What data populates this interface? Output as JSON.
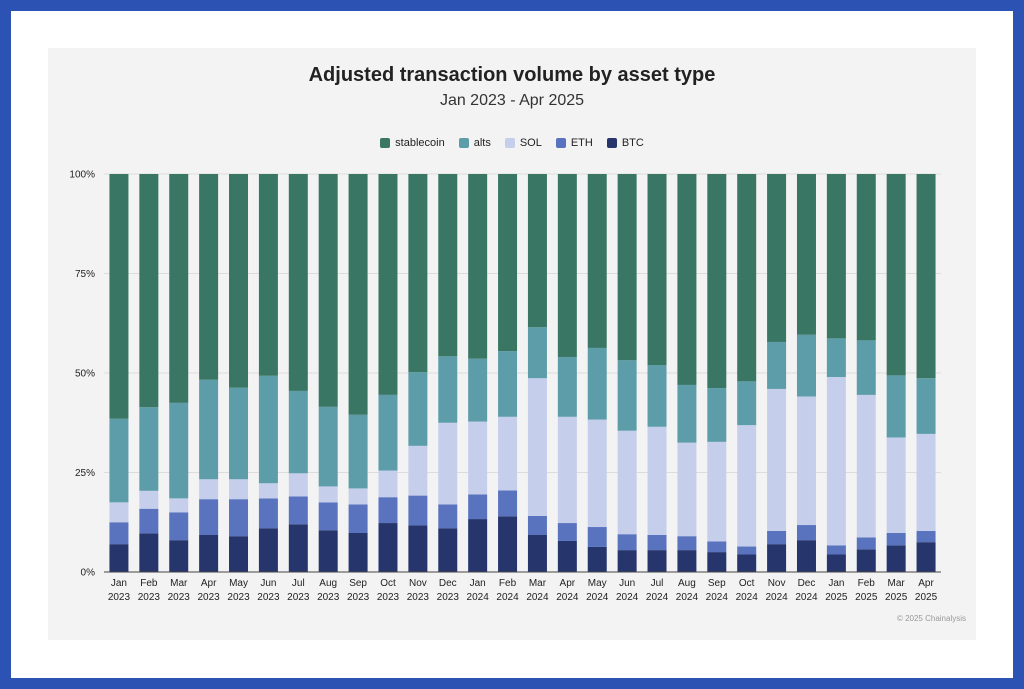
{
  "chart_data": {
    "type": "bar",
    "stacked": true,
    "normalized": true,
    "title": "Adjusted transaction volume by asset type",
    "subtitle": "Jan 2023 - Apr 2025",
    "y_ticks": [
      "0%",
      "25%",
      "50%",
      "75%",
      "100%"
    ],
    "ylim": [
      0,
      100
    ],
    "legend_placement": "top-center",
    "categories": [
      [
        "Jan",
        "2023"
      ],
      [
        "Feb",
        "2023"
      ],
      [
        "Mar",
        "2023"
      ],
      [
        "Apr",
        "2023"
      ],
      [
        "May",
        "2023"
      ],
      [
        "Jun",
        "2023"
      ],
      [
        "Jul",
        "2023"
      ],
      [
        "Aug",
        "2023"
      ],
      [
        "Sep",
        "2023"
      ],
      [
        "Oct",
        "2023"
      ],
      [
        "Nov",
        "2023"
      ],
      [
        "Dec",
        "2023"
      ],
      [
        "Jan",
        "2024"
      ],
      [
        "Feb",
        "2024"
      ],
      [
        "Mar",
        "2024"
      ],
      [
        "Apr",
        "2024"
      ],
      [
        "May",
        "2024"
      ],
      [
        "Jun",
        "2024"
      ],
      [
        "Jul",
        "2024"
      ],
      [
        "Aug",
        "2024"
      ],
      [
        "Sep",
        "2024"
      ],
      [
        "Oct",
        "2024"
      ],
      [
        "Nov",
        "2024"
      ],
      [
        "Dec",
        "2024"
      ],
      [
        "Jan",
        "2025"
      ],
      [
        "Feb",
        "2025"
      ],
      [
        "Mar",
        "2025"
      ],
      [
        "Apr",
        "2025"
      ]
    ],
    "series": [
      {
        "name": "BTC",
        "color": "#26366d",
        "values": [
          7.0,
          9.7,
          8.0,
          9.3,
          9.0,
          11.0,
          12.0,
          10.5,
          9.8,
          12.3,
          11.7,
          11.0,
          13.3,
          14.0,
          9.3,
          7.8,
          6.3,
          5.5,
          5.5,
          5.5,
          5.0,
          4.4,
          7.0,
          8.0,
          4.4,
          5.7,
          6.7,
          7.5
        ]
      },
      {
        "name": "ETH",
        "color": "#5a73bf",
        "values": [
          5.5,
          6.2,
          7.0,
          9.0,
          9.3,
          7.5,
          7.0,
          7.0,
          7.2,
          6.5,
          7.5,
          6.0,
          6.2,
          6.5,
          4.8,
          4.5,
          5.0,
          4.0,
          3.8,
          3.5,
          2.7,
          2.0,
          3.3,
          3.8,
          2.3,
          3.0,
          3.1,
          2.8
        ]
      },
      {
        "name": "SOL",
        "color": "#c5cfec",
        "values": [
          5.0,
          4.5,
          3.5,
          5.0,
          5.0,
          3.8,
          5.8,
          4.0,
          4.0,
          6.7,
          12.5,
          20.5,
          18.3,
          18.5,
          34.6,
          26.7,
          27.0,
          26.0,
          27.2,
          23.5,
          25.0,
          30.5,
          35.7,
          32.3,
          42.3,
          35.8,
          24.0,
          24.4
        ]
      },
      {
        "name": "alts",
        "color": "#5c9da9",
        "values": [
          21.0,
          21.0,
          24.0,
          25.0,
          23.0,
          27.0,
          20.7,
          20.0,
          18.5,
          19.0,
          18.5,
          16.7,
          15.8,
          16.5,
          12.8,
          15.0,
          18.0,
          17.7,
          15.5,
          14.5,
          13.5,
          11.0,
          11.8,
          15.5,
          9.7,
          13.7,
          15.6,
          14.0
        ]
      },
      {
        "name": "stablecoin",
        "color": "#3a7664",
        "values": [
          61.5,
          58.6,
          57.5,
          51.7,
          53.7,
          50.7,
          54.5,
          58.5,
          60.5,
          55.5,
          49.8,
          45.8,
          46.4,
          44.5,
          38.5,
          46.0,
          43.7,
          46.8,
          48.0,
          53.0,
          53.8,
          52.1,
          42.2,
          40.4,
          41.3,
          41.8,
          50.6,
          51.3
        ]
      }
    ]
  },
  "legend": {
    "items": [
      {
        "name": "stablecoin",
        "color": "#3a7664"
      },
      {
        "name": "alts",
        "color": "#5c9da9"
      },
      {
        "name": "SOL",
        "color": "#c5cfec"
      },
      {
        "name": "ETH",
        "color": "#5a73bf"
      },
      {
        "name": "BTC",
        "color": "#26366d"
      }
    ]
  },
  "credit": "© 2025 Chainalysis"
}
